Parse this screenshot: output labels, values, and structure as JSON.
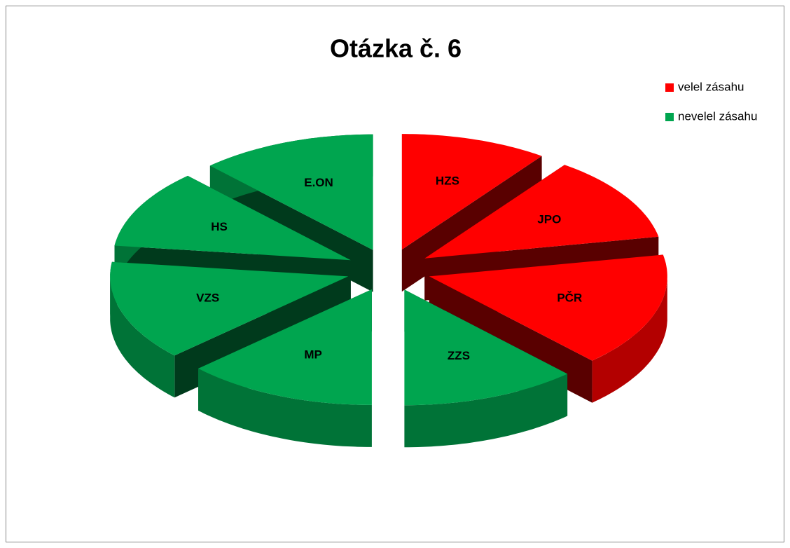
{
  "chart_data": {
    "type": "pie",
    "title": "Otázka č. 6",
    "categories": [
      "HZS",
      "JPO",
      "PČR",
      "ZZS",
      "MP",
      "VZS",
      "HS",
      "E.ON"
    ],
    "values": [
      10,
      12,
      16,
      12,
      13,
      14,
      11,
      12
    ],
    "colors": [
      "#ff0000",
      "#ff0000",
      "#ff0000",
      "#00a54f",
      "#00a54f",
      "#00a54f",
      "#00a54f",
      "#00a54f"
    ],
    "legend": [
      {
        "name": "velel zásahu",
        "color": "#ff0000"
      },
      {
        "name": "nevelel zásahu",
        "color": "#00a54f"
      }
    ],
    "legend_position": "right"
  }
}
